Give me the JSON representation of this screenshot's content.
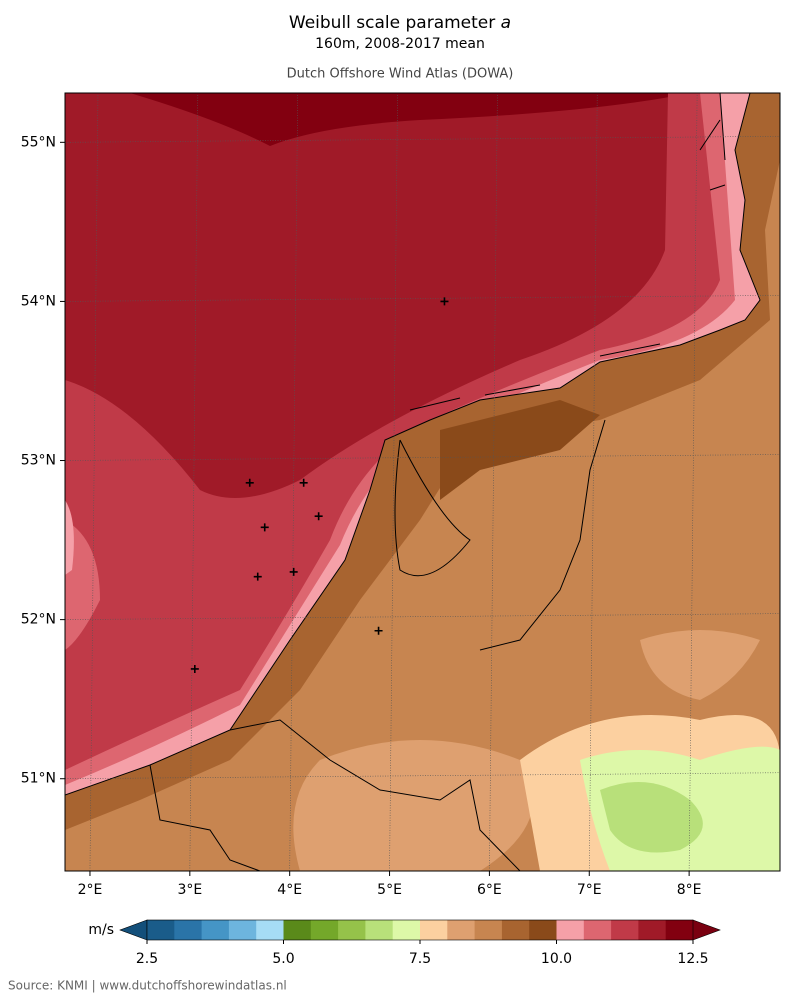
{
  "chart_data": {
    "type": "map",
    "title": "Weibull scale parameter",
    "title_symbol": "a",
    "subtitle": "160m, 2008-2017 mean",
    "attribution": "Dutch Offshore Wind Atlas (DOWA)",
    "source": "Source: KNMI | www.dutchoffshorewindatlas.nl",
    "xlim": [
      1.75,
      8.91
    ],
    "ylim": [
      50.42,
      55.31
    ],
    "xticks": [
      {
        "value": 2,
        "label": "2°E"
      },
      {
        "value": 3,
        "label": "3°E"
      },
      {
        "value": 4,
        "label": "4°E"
      },
      {
        "value": 5,
        "label": "5°E"
      },
      {
        "value": 6,
        "label": "6°E"
      },
      {
        "value": 7,
        "label": "7°E"
      },
      {
        "value": 8,
        "label": "8°E"
      }
    ],
    "yticks": [
      {
        "value": 51,
        "label": "51°N"
      },
      {
        "value": 52,
        "label": "52°N"
      },
      {
        "value": 53,
        "label": "53°N"
      },
      {
        "value": 54,
        "label": "54°N"
      },
      {
        "value": 55,
        "label": "55°N"
      }
    ],
    "grid": true,
    "points": {
      "lon": [
        5.55,
        3.6,
        4.14,
        3.75,
        4.29,
        3.68,
        4.04,
        4.89,
        3.05
      ],
      "lat": [
        54.0,
        52.86,
        52.86,
        52.58,
        52.65,
        52.27,
        52.3,
        51.93,
        51.69
      ],
      "color": "#000000"
    },
    "colorbar": {
      "label": "m/s",
      "levels": [
        2.5,
        3.0,
        3.5,
        4.0,
        4.5,
        5.0,
        5.5,
        6.0,
        6.5,
        7.0,
        7.5,
        8.0,
        8.5,
        9.0,
        9.5,
        10.0,
        10.5,
        11.0,
        11.5,
        12.0,
        12.5
      ],
      "colors": [
        "#1a5c8a",
        "#2a74a8",
        "#4595c6",
        "#6db5de",
        "#a6dcf5",
        "#5a8a1a",
        "#74a82a",
        "#95c24a",
        "#b8e07a",
        "#ddf8a8",
        "#fcd0a0",
        "#dea070",
        "#c78550",
        "#a86430",
        "#8a4a1a",
        "#f5a0a8",
        "#dd6670",
        "#c03a48",
        "#a01a28",
        "#820010"
      ],
      "extend_colors": [
        "#134f7a",
        "#7a0010"
      ],
      "ticks": [
        2.5,
        {
          "value": 5.0,
          "label": "5.0"
        },
        7.5,
        {
          "value": 10.0,
          "label": "10.0"
        },
        12.5
      ]
    }
  }
}
